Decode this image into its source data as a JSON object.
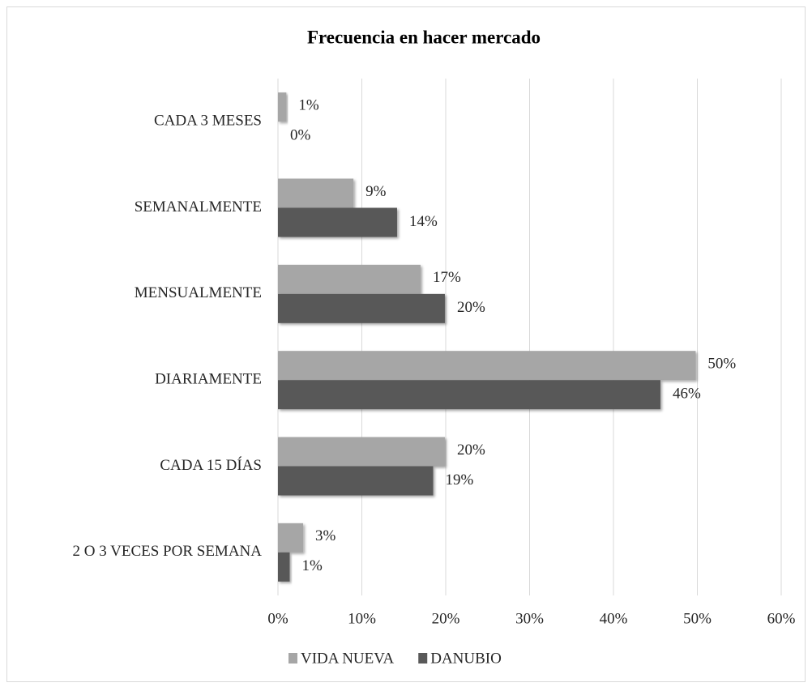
{
  "chart_data": {
    "type": "hbar",
    "title": "Frecuencia  en hacer mercado",
    "categories": [
      "CADA 3 MESES",
      "SEMANALMENTE",
      "MENSUALMENTE",
      "DIARIAMENTE",
      "CADA 15 DÍAS",
      "2 O 3 VECES POR SEMANA"
    ],
    "series": [
      {
        "name": "VIDA NUEVA",
        "color": "#a6a6a6",
        "values": [
          1,
          9,
          17,
          49.8,
          19.9,
          3
        ],
        "value_labels": [
          "1%",
          "9%",
          "17%",
          "50%",
          "20%",
          "3%"
        ]
      },
      {
        "name": "DANUBIO",
        "color": "#595959",
        "values": [
          0,
          14.2,
          19.9,
          45.6,
          18.5,
          1.4
        ],
        "value_labels": [
          "0%",
          "14%",
          "20%",
          "46%",
          "19%",
          "1%"
        ]
      }
    ],
    "xlim": [
      0,
      60
    ],
    "xticks": [
      {
        "value": 0,
        "label": "0%"
      },
      {
        "value": 10,
        "label": "10%"
      },
      {
        "value": 20,
        "label": "20%"
      },
      {
        "value": 30,
        "label": "30%"
      },
      {
        "value": 40,
        "label": "40%"
      },
      {
        "value": 50,
        "label": "50%"
      },
      {
        "value": 60,
        "label": "60%"
      }
    ],
    "grid": true,
    "legend": "bottom"
  }
}
